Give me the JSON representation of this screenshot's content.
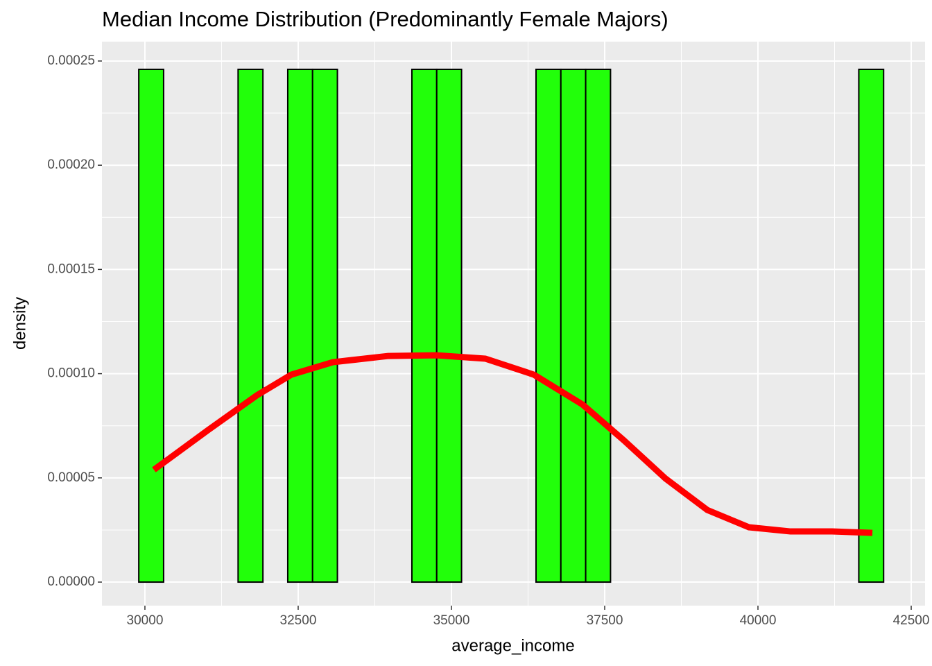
{
  "chart_data": {
    "type": "histogram",
    "title": "Median Income Distribution (Predominantly Female Majors)",
    "x_label": "average_income",
    "y_label": "density",
    "bins": [
      29900,
      30305,
      30710,
      31115,
      31520,
      31925,
      32330,
      32735,
      33140,
      33545,
      33950,
      34355,
      34760,
      35165,
      35570,
      35975,
      36380,
      36785,
      37190,
      37595,
      38000,
      38405,
      38810,
      39215,
      39620,
      40025,
      40430,
      40835,
      41240,
      41645,
      42050
    ],
    "values": [
      0.000246,
      0,
      0,
      0,
      0.000246,
      0,
      0.000246,
      0.000246,
      0,
      0,
      0,
      0.000246,
      0.000246,
      0,
      0,
      0,
      0.000246,
      0.000246,
      0.000246,
      0,
      0,
      0,
      0,
      0,
      0,
      0,
      0,
      0,
      0,
      0.000246
    ],
    "color": "#22ff0a",
    "density_curve": {
      "color": "#ff0000",
      "x": [
        30147,
        31029,
        31821,
        32387,
        33066,
        33971,
        34763,
        35554,
        36346,
        37138,
        37817,
        38495,
        39174,
        39853,
        40532,
        41210,
        41867
      ],
      "values": [
        5.39e-05,
        7.29e-05,
        8.95e-05,
        9.95e-05,
        0.0001055,
        0.0001085,
        0.0001088,
        0.0001072,
        9.95e-05,
        8.52e-05,
        6.79e-05,
        4.96e-05,
        3.46e-05,
        2.63e-05,
        2.43e-05,
        2.43e-05,
        2.36e-05
      ]
    },
    "xlim": [
      29299,
      42726
    ],
    "ylim": [
      -1.13e-05,
      0.0002593
    ],
    "xticks": [
      30000,
      32500,
      35000,
      37500,
      40000,
      42500
    ],
    "yticks": [
      {
        "value": 0,
        "label": "0.00000"
      },
      {
        "value": 5e-05,
        "label": "0.00005"
      },
      {
        "value": 0.0001,
        "label": "0.00010"
      },
      {
        "value": 0.00015,
        "label": "0.00015"
      },
      {
        "value": 0.0002,
        "label": "0.00020"
      },
      {
        "value": 0.00025,
        "label": "0.00025"
      }
    ],
    "grid": true
  }
}
